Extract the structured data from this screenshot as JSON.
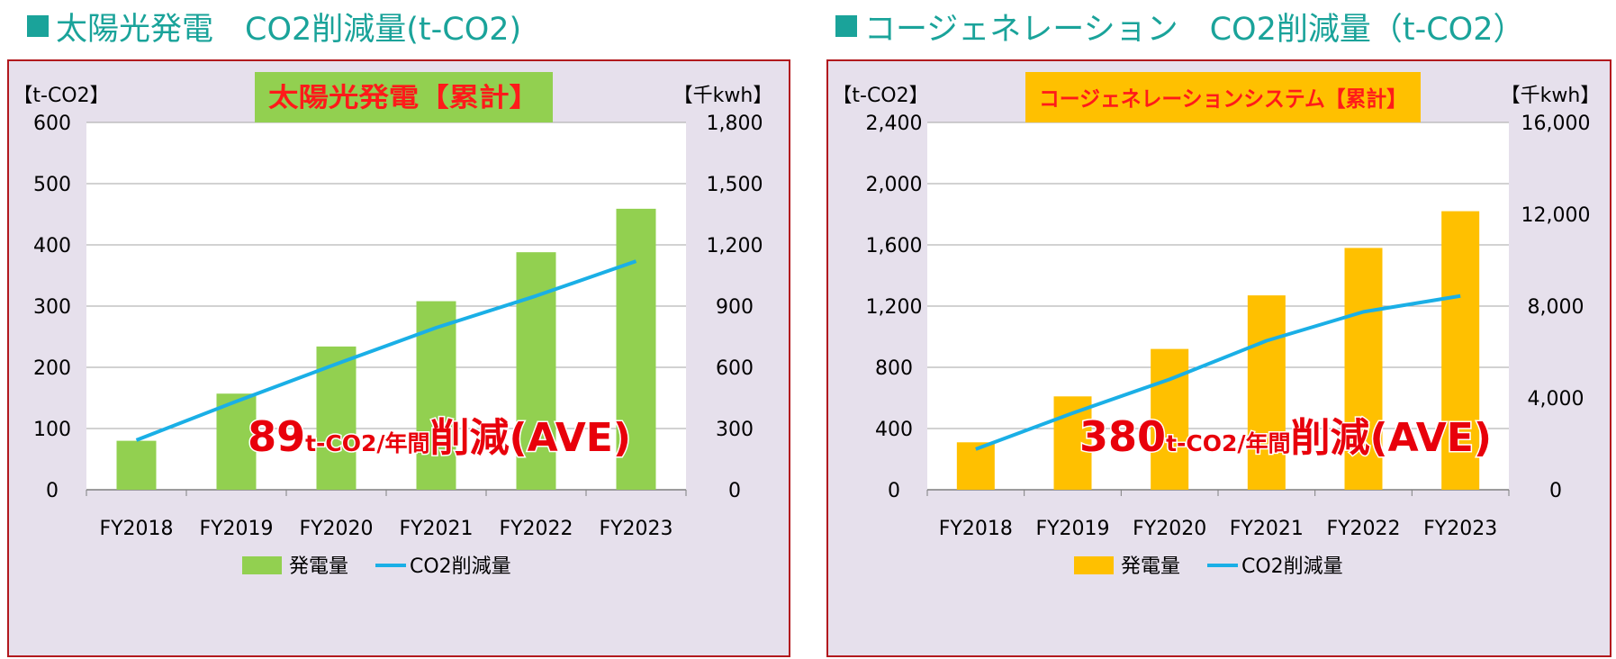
{
  "colors": {
    "title_teal": "#1aa39a",
    "panel_border": "#b2191e",
    "panel_bg": "#e6e0ec",
    "solar_bar": "#92d050",
    "cogen_bar": "#ffc000",
    "co2_line": "#1aafe6",
    "annotation_red": "#e8000b",
    "badge_text_red": "#ff1a1a"
  },
  "sections": [
    {
      "title": "太陽光発電　CO2削減量(t-CO2)",
      "chart_data": {
        "type": "bar",
        "title": "太陽光発電【累計】",
        "left_unit": "【t-CO2】",
        "right_unit": "【千kwh】",
        "categories": [
          "FY2018",
          "FY2019",
          "FY2020",
          "FY2021",
          "FY2022",
          "FY2023"
        ],
        "left_ticks": [
          "0",
          "100",
          "200",
          "300",
          "400",
          "500",
          "600"
        ],
        "right_ticks": [
          "0",
          "300",
          "600",
          "900",
          "1,200",
          "1,500",
          "1,800"
        ],
        "ylim_left": [
          0,
          600
        ],
        "ylim_right": [
          0,
          1800
        ],
        "series": [
          {
            "name": "発電量",
            "type": "bar",
            "axis": "left",
            "values": [
              80,
              157,
              234,
              308,
              388,
              459
            ]
          },
          {
            "name": "CO2削減量",
            "type": "line",
            "axis": "right",
            "values": [
              243,
              433,
              616,
              794,
              950,
              1120
            ]
          }
        ],
        "legend_position": "bottom",
        "grid": true,
        "annotation": {
          "big": "89",
          "unit": "t-CO2/年間",
          "tail": "削減(AVE)"
        }
      }
    },
    {
      "title": "コージェネレーション　CO2削減量（t-CO2）",
      "chart_data": {
        "type": "bar",
        "title": "コージェネレーションシステム【累計】",
        "left_unit": "【t-CO2】",
        "right_unit": "【千kwh】",
        "categories": [
          "FY2018",
          "FY2019",
          "FY2020",
          "FY2021",
          "FY2022",
          "FY2023"
        ],
        "left_ticks": [
          "0",
          "400",
          "800",
          "1,200",
          "1,600",
          "2,000",
          "2,400"
        ],
        "right_ticks": [
          "0",
          "4,000",
          "8,000",
          "12,000",
          "16,000"
        ],
        "ylim_left": [
          0,
          2400
        ],
        "ylim_right": [
          0,
          16000
        ],
        "series": [
          {
            "name": "発電量",
            "type": "bar",
            "axis": "left",
            "values": [
              310,
              610,
              920,
              1270,
              1580,
              1820
            ]
          },
          {
            "name": "CO2削減量",
            "type": "line",
            "axis": "right",
            "values": [
              1770,
              3340,
              4810,
              6490,
              7750,
              8440
            ]
          }
        ],
        "legend_position": "bottom",
        "grid": true,
        "annotation": {
          "big": "380",
          "unit": "t-CO2/年間",
          "tail": "削減(AVE)"
        }
      }
    }
  ]
}
